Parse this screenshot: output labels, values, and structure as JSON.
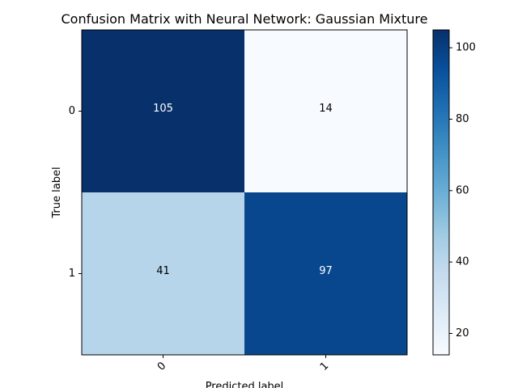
{
  "chart_data": {
    "type": "heatmap",
    "title": "Confusion Matrix with Neural Network: Gaussian Mixture",
    "xlabel": "Predicted label",
    "ylabel": "True label",
    "x_categories": [
      "0",
      "1"
    ],
    "y_categories": [
      "0",
      "1"
    ],
    "values": [
      [
        105,
        14
      ],
      [
        41,
        97
      ]
    ],
    "colormap": "Blues",
    "colorbar": {
      "range": [
        14,
        105
      ],
      "ticks": [
        20,
        40,
        60,
        80,
        100
      ],
      "tick_labels": [
        "20",
        "40",
        "60",
        "80",
        "100"
      ]
    },
    "colors": {
      "dark_cell": "#08306b",
      "light_cell": "#f7fbff",
      "text_on_dark": "#ffffff",
      "text_on_light": "#000000"
    }
  }
}
